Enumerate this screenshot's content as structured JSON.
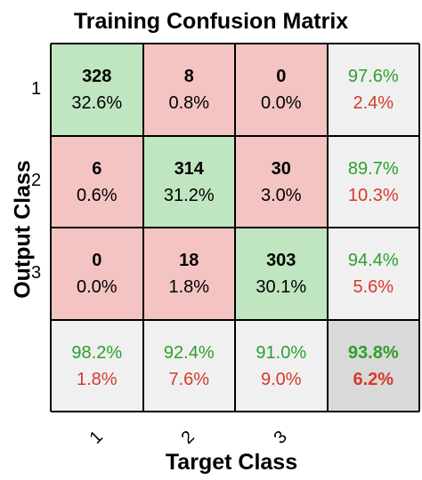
{
  "chart_data": {
    "type": "heatmap",
    "title": "Training Confusion Matrix",
    "xlabel": "Target Class",
    "ylabel": "Output Class",
    "row_labels": [
      "1",
      "2",
      "3"
    ],
    "col_labels": [
      "1",
      "2",
      "3"
    ],
    "matrix": [
      [
        328,
        8,
        0
      ],
      [
        6,
        314,
        30
      ],
      [
        0,
        18,
        303
      ]
    ],
    "matrix_percent": [
      [
        "32.6%",
        "0.8%",
        "0.0%"
      ],
      [
        "0.6%",
        "31.2%",
        "3.0%"
      ],
      [
        "0.0%",
        "1.8%",
        "30.1%"
      ]
    ],
    "row_summary": [
      {
        "correct": "97.6%",
        "incorrect": "2.4%"
      },
      {
        "correct": "89.7%",
        "incorrect": "10.3%"
      },
      {
        "correct": "94.4%",
        "incorrect": "5.6%"
      }
    ],
    "col_summary": [
      {
        "correct": "98.2%",
        "incorrect": "1.8%"
      },
      {
        "correct": "92.4%",
        "incorrect": "7.6%"
      },
      {
        "correct": "91.0%",
        "incorrect": "9.0%"
      }
    ],
    "overall": {
      "correct": "93.8%",
      "incorrect": "6.2%"
    },
    "colors": {
      "diagonal": "#bfe6c0",
      "off_diagonal": "#f4c4c2",
      "summary": "#f0f0f0",
      "overall": "#d9d9d9",
      "correct_text": "#2ca02c",
      "incorrect_text": "#d63a2b",
      "count_text": "#000000"
    }
  }
}
